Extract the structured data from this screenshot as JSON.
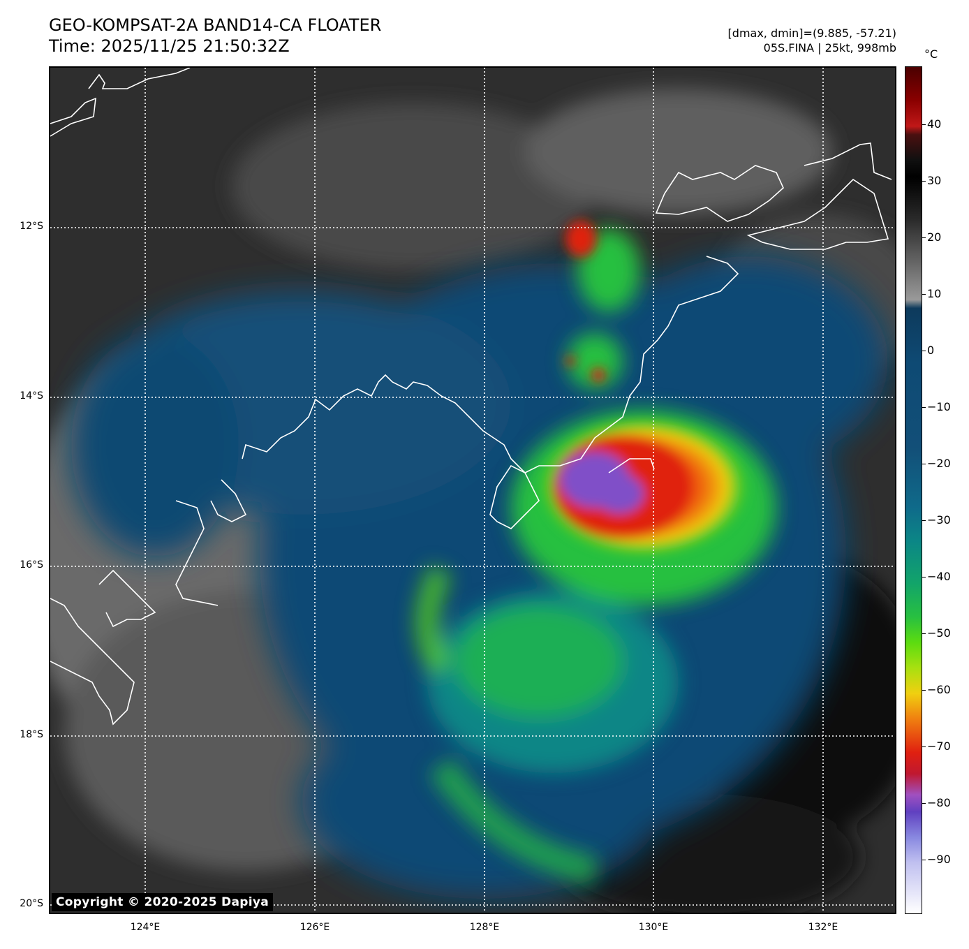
{
  "header": {
    "title_line1": "GEO-KOMPSAT-2A BAND14-CA FLOATER",
    "title_line2": "Time: 2025/11/25 21:50:32Z",
    "dmax_dmin": "[dmax, dmin]=(9.885, -57.21)",
    "storm_info": "05S.FINA | 25kt, 998mb"
  },
  "colorbar": {
    "unit": "°C",
    "ticks": [
      "40",
      "30",
      "20",
      "10",
      "0",
      "−10",
      "−20",
      "−30",
      "−40",
      "−50",
      "−60",
      "−70",
      "−80",
      "−90"
    ]
  },
  "axes": {
    "lat_labels": [
      "12°S",
      "14°S",
      "16°S",
      "18°S",
      "20°S"
    ],
    "lon_labels": [
      "124°E",
      "126°E",
      "128°E",
      "130°E",
      "132°E"
    ]
  },
  "colors": {
    "coastline": "#ffffff",
    "gridline": "#ffffff",
    "ocean_cloud_free": "#0e4a74",
    "land": "#6a6a6a",
    "cold_core": "#e02010",
    "very_cold": "#8050c8"
  },
  "copyright": "Copyright © 2020-2025 Dapiya"
}
